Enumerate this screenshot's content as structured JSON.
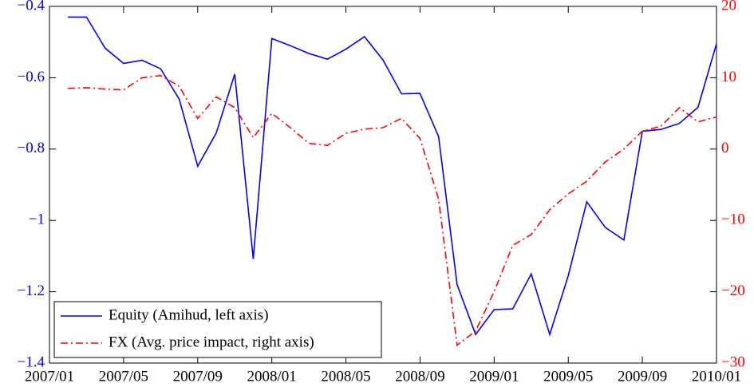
{
  "chart_data": {
    "type": "line",
    "categories": [
      "2007/01",
      null,
      null,
      null,
      "2007/05",
      null,
      null,
      null,
      "2007/09",
      null,
      null,
      null,
      "2008/01",
      null,
      null,
      null,
      "2008/05",
      null,
      null,
      null,
      "2008/09",
      null,
      null,
      null,
      "2009/01",
      null,
      null,
      null,
      "2009/05",
      null,
      null,
      null,
      "2009/09",
      null,
      null,
      null,
      "2010/01"
    ],
    "series": [
      {
        "name": "Equity (Amihud, left axis)",
        "color": "#0000ff",
        "linestyle": "solid",
        "values": [
          null,
          -0.43,
          -0.43,
          -0.517,
          -0.56,
          -0.551,
          -0.575,
          -0.66,
          -0.848,
          -0.755,
          -0.59,
          -1.108,
          -0.49,
          -0.51,
          -0.532,
          -0.548,
          -0.52,
          -0.485,
          -0.55,
          -0.645,
          -0.644,
          -0.765,
          -1.18,
          -1.32,
          -1.25,
          -1.248,
          -1.15,
          -1.32,
          -1.155,
          -0.948,
          -1.02,
          -1.055,
          -0.75,
          -0.745,
          -0.728,
          -0.683,
          -0.505
        ]
      },
      {
        "name": "FX (Avg. price impact, right axis)",
        "color": "#ff0000",
        "linestyle": "dashdot",
        "axis": "y2",
        "values": [
          null,
          8.5,
          8.6,
          8.4,
          8.3,
          10,
          10.3,
          8.8,
          4.3,
          7.3,
          5.8,
          1.6,
          5,
          3,
          0.8,
          0.5,
          2.2,
          2.8,
          3,
          4.3,
          1.5,
          -7,
          -27.5,
          -25.5,
          -20,
          -13.5,
          -12,
          -8.5,
          -6.3,
          -4.5,
          -1.8,
          0,
          2.5,
          3.2,
          5.8,
          3.8,
          4.5
        ]
      }
    ],
    "ylim": [
      -1.4,
      -0.4
    ],
    "yticks": [
      {
        "value": -1.4,
        "label": "−1.4"
      },
      {
        "value": -1.2,
        "label": "−1.2"
      },
      {
        "value": -1,
        "label": "−1"
      },
      {
        "value": -0.8,
        "label": "−0.8"
      },
      {
        "value": -0.6,
        "label": "−0.6"
      },
      {
        "value": -0.4,
        "label": "−0.4"
      }
    ],
    "y2lim": [
      -30,
      20
    ],
    "y2ticks": [
      {
        "value": -30,
        "label": "−30"
      },
      {
        "value": -20,
        "label": "−20"
      },
      {
        "value": -10,
        "label": "−10"
      },
      0,
      10,
      20
    ],
    "legend": "lower-left"
  }
}
